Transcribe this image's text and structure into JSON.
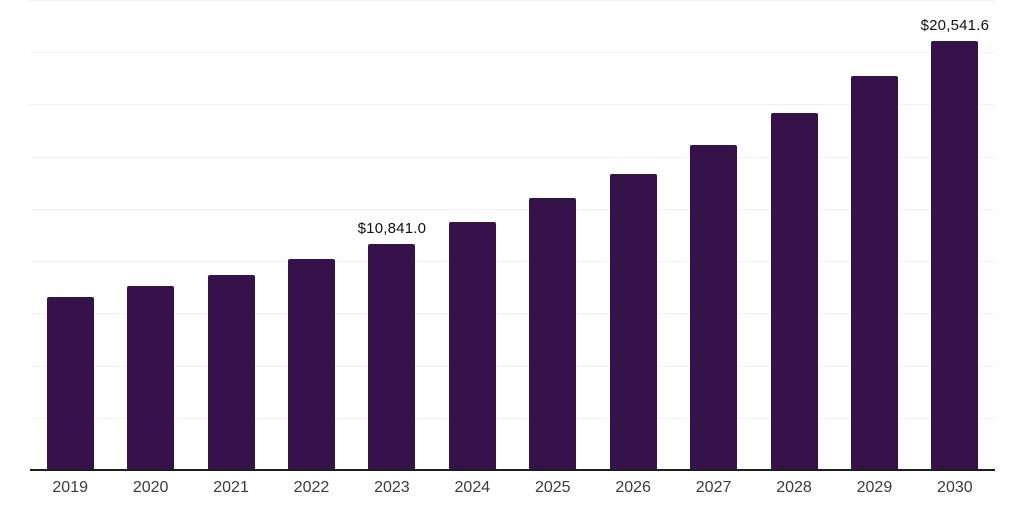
{
  "chart_data": {
    "type": "bar",
    "title": "",
    "xlabel": "",
    "ylabel": "",
    "categories": [
      "2019",
      "2020",
      "2021",
      "2022",
      "2023",
      "2024",
      "2025",
      "2026",
      "2027",
      "2028",
      "2029",
      "2030"
    ],
    "values": [
      8300,
      8800,
      9350,
      10100,
      10841.0,
      11850,
      13000,
      14150,
      15550,
      17100,
      18850,
      20541.6
    ],
    "point_labels": [
      "",
      "",
      "",
      "",
      "$10,841.0",
      "",
      "",
      "",
      "",
      "",
      "",
      "$20,541.6"
    ],
    "ylim": [
      0,
      22500
    ],
    "gridline_step": 2500,
    "grid": true,
    "legend_position": "none",
    "colors": {
      "bar": "#35124A",
      "axis_line": "#1d1d1d",
      "gridline": "#f2f2f2",
      "data_label": "#111111",
      "tick_label": "#3b3b3b",
      "background": "#ffffff"
    }
  }
}
